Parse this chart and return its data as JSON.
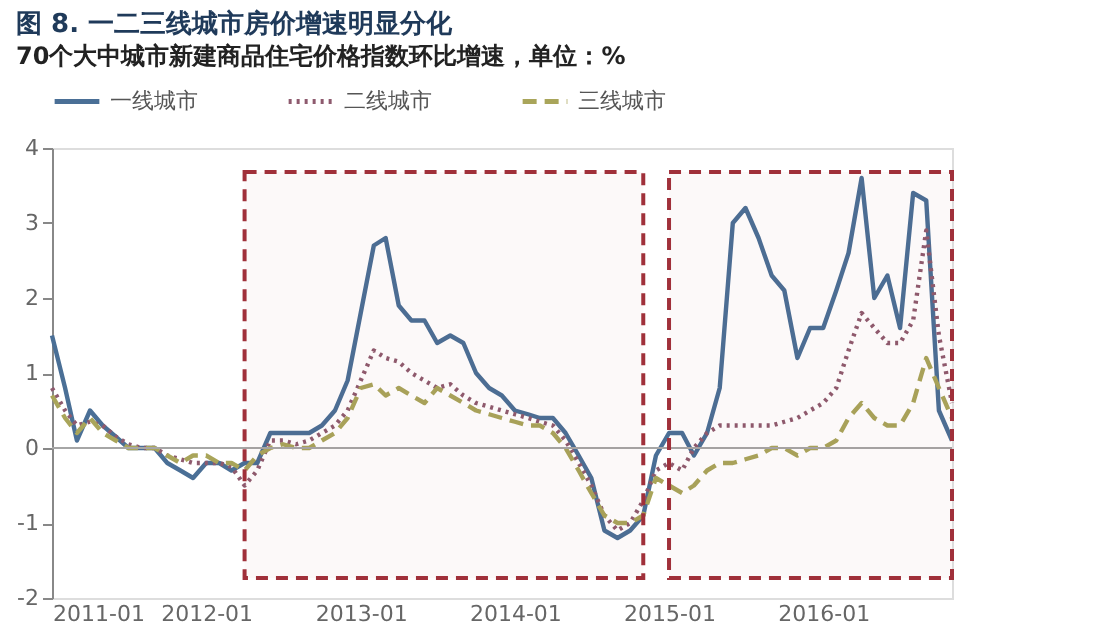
{
  "chart_data": {
    "type": "line",
    "title": "图 8. 一二三线城市房价增速明显分化",
    "subtitle": "70个大中城市新建商品住宅价格指数环比增速，单位：%",
    "x": [
      "2011-01",
      "2011-02",
      "2011-03",
      "2011-04",
      "2011-05",
      "2011-06",
      "2011-07",
      "2011-08",
      "2011-09",
      "2011-10",
      "2011-11",
      "2011-12",
      "2012-01",
      "2012-02",
      "2012-03",
      "2012-04",
      "2012-05",
      "2012-06",
      "2012-07",
      "2012-08",
      "2012-09",
      "2012-10",
      "2012-11",
      "2012-12",
      "2013-01",
      "2013-02",
      "2013-03",
      "2013-04",
      "2013-05",
      "2013-06",
      "2013-07",
      "2013-08",
      "2013-09",
      "2013-10",
      "2013-11",
      "2013-12",
      "2014-01",
      "2014-02",
      "2014-03",
      "2014-04",
      "2014-05",
      "2014-06",
      "2014-07",
      "2014-08",
      "2014-09",
      "2014-10",
      "2014-11",
      "2014-12",
      "2015-01",
      "2015-02",
      "2015-03",
      "2015-04",
      "2015-05",
      "2015-06",
      "2015-07",
      "2015-08",
      "2015-09",
      "2015-10",
      "2015-11",
      "2015-12",
      "2016-01",
      "2016-02",
      "2016-03",
      "2016-04",
      "2016-05",
      "2016-06",
      "2016-07",
      "2016-08",
      "2016-09",
      "2016-10",
      "2016-11"
    ],
    "series": [
      {
        "name": "一线城市",
        "color": "#4a6f96",
        "line_style": "solid",
        "values": [
          1.5,
          0.8,
          0.1,
          0.5,
          0.3,
          0.15,
          0.0,
          0.0,
          0.0,
          -0.2,
          -0.3,
          -0.4,
          -0.2,
          -0.2,
          -0.3,
          -0.2,
          -0.2,
          0.2,
          0.2,
          0.2,
          0.2,
          0.3,
          0.5,
          0.9,
          1.8,
          2.7,
          2.8,
          1.9,
          1.7,
          1.7,
          1.4,
          1.5,
          1.4,
          1.0,
          0.8,
          0.7,
          0.5,
          0.45,
          0.4,
          0.4,
          0.2,
          -0.1,
          -0.4,
          -1.1,
          -1.2,
          -1.1,
          -0.9,
          -0.1,
          0.2,
          0.2,
          -0.1,
          0.2,
          0.8,
          3.0,
          3.2,
          2.8,
          2.3,
          2.1,
          1.2,
          1.6,
          1.6,
          2.1,
          2.6,
          3.6,
          2.0,
          2.3,
          1.6,
          3.4,
          3.3,
          0.5,
          0.1
        ]
      },
      {
        "name": "二线城市",
        "color": "#8e5a6e",
        "line_style": "dotted",
        "values": [
          0.8,
          0.5,
          0.3,
          0.35,
          0.3,
          0.15,
          0.05,
          0.0,
          0.0,
          -0.1,
          -0.15,
          -0.2,
          -0.2,
          -0.2,
          -0.25,
          -0.5,
          -0.3,
          0.1,
          0.1,
          0.05,
          0.1,
          0.2,
          0.3,
          0.5,
          0.9,
          1.3,
          1.2,
          1.15,
          1.0,
          0.9,
          0.8,
          0.85,
          0.7,
          0.6,
          0.55,
          0.5,
          0.45,
          0.4,
          0.35,
          0.3,
          0.1,
          -0.2,
          -0.5,
          -0.9,
          -1.1,
          -1.0,
          -0.7,
          -0.3,
          -0.2,
          -0.3,
          0.0,
          0.2,
          0.3,
          0.3,
          0.3,
          0.3,
          0.3,
          0.35,
          0.4,
          0.5,
          0.6,
          0.8,
          1.3,
          1.8,
          1.6,
          1.4,
          1.4,
          1.7,
          2.9,
          1.5,
          0.6
        ]
      },
      {
        "name": "三线城市",
        "color": "#a9a55a",
        "line_style": "dashed",
        "values": [
          0.7,
          0.4,
          0.2,
          0.4,
          0.2,
          0.1,
          0.0,
          0.0,
          0.0,
          -0.1,
          -0.2,
          -0.1,
          -0.1,
          -0.2,
          -0.2,
          -0.3,
          -0.1,
          0.0,
          0.05,
          0.0,
          0.0,
          0.1,
          0.2,
          0.4,
          0.8,
          0.85,
          0.7,
          0.8,
          0.7,
          0.6,
          0.8,
          0.7,
          0.6,
          0.5,
          0.45,
          0.4,
          0.35,
          0.3,
          0.3,
          0.2,
          0.0,
          -0.3,
          -0.6,
          -0.9,
          -1.0,
          -1.0,
          -0.9,
          -0.4,
          -0.5,
          -0.6,
          -0.5,
          -0.3,
          -0.2,
          -0.2,
          -0.15,
          -0.1,
          0.0,
          0.0,
          -0.1,
          0.0,
          0.0,
          0.1,
          0.4,
          0.6,
          0.4,
          0.3,
          0.3,
          0.6,
          1.2,
          0.8,
          0.4
        ]
      }
    ],
    "xlim": [
      "2011-01",
      "2016-11"
    ],
    "xticks": [
      {
        "value": "2011-01",
        "label": "2011-01"
      },
      {
        "value": "2012-01",
        "label": "2012-01"
      },
      {
        "value": "2013-01",
        "label": "2013-01"
      },
      {
        "value": "2014-01",
        "label": "2014-01"
      },
      {
        "value": "2015-01",
        "label": "2015-01"
      },
      {
        "value": "2016-01",
        "label": "2016-01"
      }
    ],
    "ylim": [
      -2,
      4
    ],
    "yticks": [
      -2,
      -1,
      0,
      1,
      2,
      3,
      4
    ],
    "ref_lines": [
      {
        "axis": "y",
        "value": 0,
        "color": "#a6a6a6"
      }
    ],
    "bands": [
      {
        "axis": "x",
        "from": "2012-04",
        "to": "2014-11",
        "color": "#a0303a"
      },
      {
        "axis": "x",
        "from": "2015-01",
        "to": "2016-11",
        "color": "#a0303a"
      }
    ],
    "legend": "top",
    "grid": false,
    "marker": "none"
  }
}
